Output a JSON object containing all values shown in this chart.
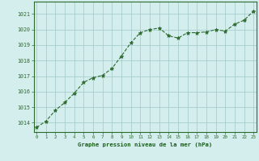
{
  "x": [
    0,
    1,
    2,
    3,
    4,
    5,
    6,
    7,
    8,
    9,
    10,
    11,
    12,
    13,
    14,
    15,
    16,
    17,
    18,
    19,
    20,
    21,
    22,
    23
  ],
  "y": [
    1013.7,
    1014.1,
    1014.8,
    1015.3,
    1015.9,
    1016.6,
    1016.9,
    1017.05,
    1017.5,
    1018.3,
    1019.15,
    1019.8,
    1020.0,
    1020.1,
    1019.6,
    1019.45,
    1019.8,
    1019.8,
    1019.85,
    1020.0,
    1019.9,
    1020.35,
    1020.6,
    1021.2
  ],
  "line_color": "#2d6a2d",
  "marker": "*",
  "marker_color": "#2d6a2d",
  "marker_size": 3.5,
  "bg_color": "#d4eeee",
  "grid_color": "#a0c8c8",
  "grid_color2": "#c0dcdc",
  "xlabel": "Graphe pression niveau de la mer (hPa)",
  "xlabel_color": "#1a5c1a",
  "ylabel_ticks": [
    1014,
    1015,
    1016,
    1017,
    1018,
    1019,
    1020,
    1021
  ],
  "xlim": [
    -0.3,
    23.3
  ],
  "ylim": [
    1013.4,
    1021.8
  ],
  "xticks": [
    0,
    1,
    2,
    3,
    4,
    5,
    6,
    7,
    8,
    9,
    10,
    11,
    12,
    13,
    14,
    15,
    16,
    17,
    18,
    19,
    20,
    21,
    22,
    23
  ],
  "tick_label_color": "#1a5c1a",
  "spine_color": "#2d6a2d",
  "title_bg_color": "#2d6a2d"
}
